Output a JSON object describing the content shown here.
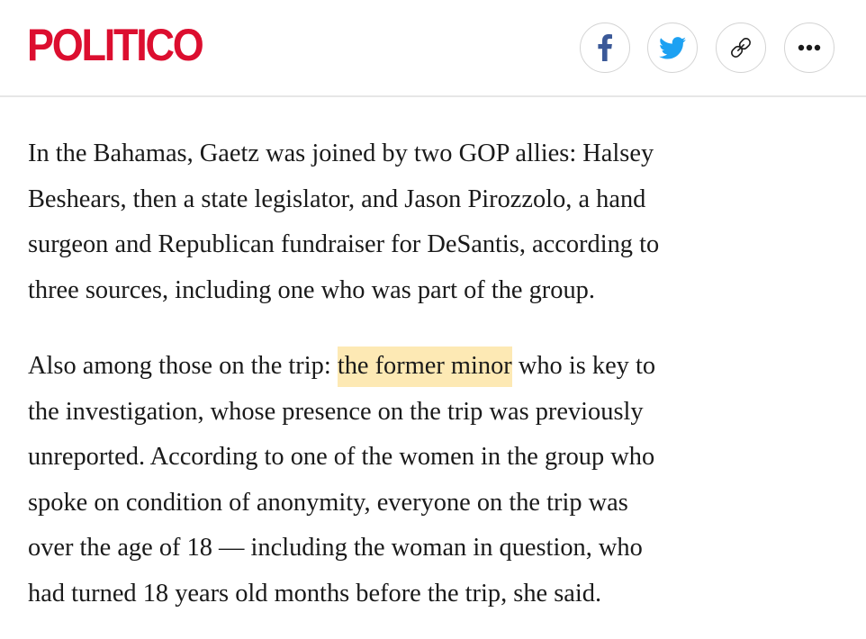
{
  "header": {
    "logo_text": "POLITICO",
    "share": {
      "facebook_icon": "facebook-icon",
      "twitter_icon": "twitter-icon",
      "link_icon": "link-icon",
      "more_icon": "more-icon"
    }
  },
  "colors": {
    "brand_red": "#dc0e2f",
    "facebook_blue": "#3b5998",
    "twitter_blue": "#1da1f2",
    "highlight": "#fde9b4",
    "text": "#1a1a1a"
  },
  "article": {
    "p1_lines": [
      "In the Bahamas, Gaetz was joined by two GOP allies: Halsey",
      "Beshears, then a state legislator, and Jason Pirozzolo, a hand",
      "surgeon and Republican fundraiser for DeSantis, according to",
      "three sources, including one who was part of the group."
    ],
    "p2_line1_before": "Also among those on the trip: ",
    "p2_line1_highlight": "the former minor",
    "p2_line1_after": " who is key to",
    "p2_rest_lines": [
      "the investigation, whose presence on the trip was previously",
      "unreported. According to one of the women in the group who",
      "spoke on condition of anonymity, everyone on the trip was",
      "over the age of 18 — including the woman in question, who",
      "had turned 18 years old months before the trip, she said."
    ]
  }
}
